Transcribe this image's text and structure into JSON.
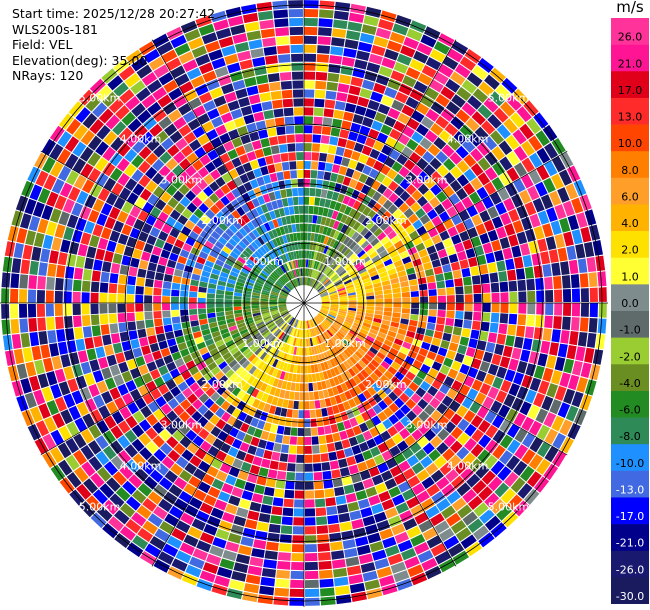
{
  "info": {
    "start_time": "Start time: 2025/12/28 20:27:42",
    "instrument": "WLS200s-181",
    "field": "Field: VEL",
    "elevation": "Elevation(deg): 35.00",
    "nrays": "NRays: 120"
  },
  "chart_data": {
    "type": "heatmap",
    "projection": "polar-ppi",
    "field": "VEL",
    "units": "m/s",
    "nrays": 120,
    "range_rings_km": [
      1,
      2,
      3,
      4,
      5
    ],
    "ring_labels": [
      "1.00km",
      "2.00km",
      "3.00km",
      "4.00km",
      "5.00km"
    ],
    "max_range_km": 5.1,
    "colorbar": {
      "title": "m/s",
      "ticks": [
        "26.0",
        "21.0",
        "17.0",
        "13.0",
        "10.0",
        "8.0",
        "6.0",
        "4.0",
        "2.0",
        "1.0",
        "0.0",
        "-1.0",
        "-2.0",
        "-4.0",
        "-6.0",
        "-8.0",
        "-10.0",
        "-13.0",
        "-17.0",
        "-21.0",
        "-26.0",
        "-30.0"
      ],
      "colors": [
        "#ff3399",
        "#ff1493",
        "#e0001a",
        "#ff2a2a",
        "#ff4500",
        "#ff7f00",
        "#ff9f2a",
        "#ffb300",
        "#ffe100",
        "#ffff33",
        "#7f8c8d",
        "#5f6a6a",
        "#9acd32",
        "#6b8e23",
        "#228b22",
        "#2e8b57",
        "#1e90ff",
        "#4169e1",
        "#0000ff",
        "#00008b",
        "#191970",
        "#1a1a5e"
      ]
    },
    "pattern": {
      "inner_range_km": 1.5,
      "negative_sector": "north-west",
      "positive_sector": "south-east",
      "outer_noise": true
    }
  }
}
